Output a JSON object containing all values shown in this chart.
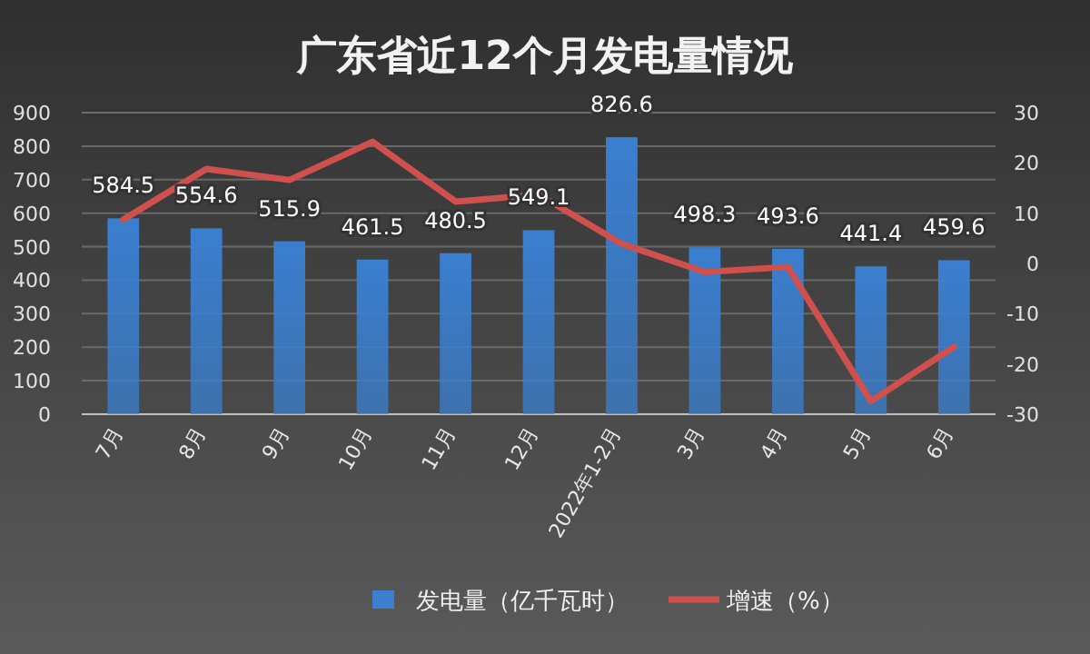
{
  "chart_data": {
    "type": "bar",
    "title": "广东省近12个月发电量情况",
    "categories": [
      "7月",
      "8月",
      "9月",
      "10月",
      "11月",
      "12月",
      "2022年1-2月",
      "3月",
      "4月",
      "5月",
      "6月"
    ],
    "series": [
      {
        "name": "发电量（亿千瓦时）",
        "color": "#3a7fd0",
        "values": [
          584.5,
          554.6,
          515.9,
          461.5,
          480.5,
          549.1,
          826.6,
          498.3,
          493.6,
          441.4,
          459.6
        ]
      },
      {
        "name": "增速（%）",
        "type": "line",
        "axis": "y2",
        "color": "#d0504e",
        "values": [
          8.7,
          18.8,
          16.6,
          24.2,
          12.3,
          13.7,
          3.9,
          -1.7,
          -0.7,
          -27.4,
          -16.6
        ]
      }
    ],
    "ylim": [
      0,
      900
    ],
    "yticks": [
      0,
      100,
      200,
      300,
      400,
      500,
      600,
      700,
      800,
      900
    ],
    "y2lim": [
      -30,
      30
    ],
    "y2ticks": [
      -30,
      -20,
      -10,
      0,
      10,
      20,
      30
    ],
    "value_labels": [
      "584.5",
      "554.6",
      "515.9",
      "461.5",
      "480.5",
      "549.1",
      "826.6",
      "498.3",
      "493.6",
      "441.4",
      "459.6"
    ],
    "grid": "y",
    "legend": "bottom",
    "marker": "none"
  }
}
